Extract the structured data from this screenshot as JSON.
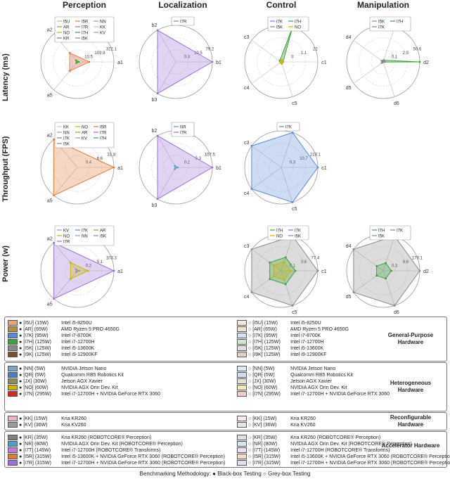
{
  "columns": [
    "Perception",
    "Localization",
    "Control",
    "Manipulation"
  ],
  "rows": [
    "Latency (ms)",
    "Throughput (FPS)",
    "Power (w)"
  ],
  "chart_data": [
    {
      "type": "radar",
      "row": "Latency (ms)",
      "column": "Perception",
      "axes": [
        "a1",
        "a2",
        "a5"
      ],
      "rings": [
        10.5,
        103.9,
        322.1
      ],
      "legend": [
        "I5U",
        "I5R",
        "NN",
        "AR",
        "I7R",
        "KK",
        "NO",
        "I7H",
        "KV",
        "KR",
        "I5K"
      ],
      "series": [
        {
          "name": "I5R",
          "values": [
            103.9,
            103.9,
            103.9
          ]
        },
        {
          "name": "KK",
          "values": [
            60,
            80,
            70
          ]
        },
        {
          "name": "I7H",
          "values": [
            10.5,
            15,
            12
          ]
        },
        {
          "name": "NO",
          "values": [
            12,
            20,
            10
          ]
        }
      ]
    },
    {
      "type": "radar",
      "row": "Latency (ms)",
      "column": "Localization",
      "axes": [
        "b1",
        "b2",
        "b3"
      ],
      "rings": [
        0.3,
        10.5,
        79.2
      ],
      "legend": [
        "I7R"
      ],
      "series": [
        {
          "name": "I7R",
          "values": [
            79.2,
            79.2,
            79.2
          ]
        }
      ]
    },
    {
      "type": "radar",
      "row": "Latency (ms)",
      "column": "Control",
      "axes": [
        "c1",
        "c2",
        "c3",
        "c4",
        "c5"
      ],
      "rings": [
        0.0,
        1.1,
        22.0
      ],
      "legend": [
        "I7K",
        "I7H",
        "I5K",
        "NO"
      ],
      "series": [
        {
          "name": "I7H",
          "values": [
            1.1,
            22.0,
            1.1,
            0.5,
            1.1
          ]
        },
        {
          "name": "NO",
          "values": [
            1.1,
            1.1,
            0.5,
            0.5,
            1.1
          ]
        }
      ]
    },
    {
      "type": "radar",
      "row": "Latency (ms)",
      "column": "Manipulation",
      "axes": [
        "d2",
        "d3",
        "d4",
        "d5",
        "d6"
      ],
      "rings": [
        0.1,
        2.5,
        50.6
      ],
      "legend": [
        "I5K",
        "I7H",
        "I7K"
      ],
      "series": [
        {
          "name": "I7H",
          "values": [
            50.6,
            2.5,
            2.5,
            0.1,
            0.1
          ]
        },
        {
          "name": "I5K",
          "values": [
            2.5,
            2.5,
            2.5,
            2.5,
            0.1
          ]
        }
      ]
    },
    {
      "type": "radar",
      "row": "Throughput (FPS)",
      "column": "Perception",
      "axes": [
        "a1",
        "a2",
        "a5"
      ],
      "rings": [
        0.4,
        6.6,
        31.8
      ],
      "legend": [
        "KK",
        "NO",
        "I5R",
        "NN",
        "AR",
        "I7R",
        "I7K",
        "KV",
        "I7H",
        "I5K"
      ],
      "series": [
        {
          "name": "I5R",
          "values": [
            31.8,
            31.8,
            31.8
          ]
        }
      ]
    },
    {
      "type": "radar",
      "row": "Throughput (FPS)",
      "column": "Localization",
      "axes": [
        "b1",
        "b2",
        "b3"
      ],
      "rings": [
        0.2,
        5.3,
        107.5
      ],
      "legend": [
        "NR",
        "I7R"
      ],
      "series": [
        {
          "name": "I7R",
          "values": [
            107.5,
            107.5,
            107.5
          ]
        },
        {
          "name": "NR",
          "values": [
            5.3,
            5.3,
            5.3
          ]
        }
      ]
    },
    {
      "type": "radar",
      "row": "Throughput (FPS)",
      "column": "Control",
      "axes": [
        "c1",
        "c2",
        "c3",
        "c4",
        "c5"
      ],
      "rings": [
        0.3,
        10.7,
        219.1
      ],
      "legend": [
        "I7K"
      ],
      "series": [
        {
          "name": "I7K",
          "values": [
            219.1,
            219.1,
            219.1,
            219.1,
            219.1
          ]
        }
      ]
    },
    {
      "type": "radar",
      "row": "Power (w)",
      "column": "Perception",
      "axes": [
        "a1",
        "a2",
        "a5"
      ],
      "rings": [
        0.2,
        5.1,
        103.3
      ],
      "legend": [
        "KV",
        "I7K",
        "AR",
        "NO",
        "NN",
        "I5K",
        "I7R"
      ],
      "series": [
        {
          "name": "I7R",
          "values": [
            103.3,
            103.3,
            103.3
          ]
        },
        {
          "name": "KV",
          "values": [
            5.1,
            5.1,
            5.1
          ]
        },
        {
          "name": "NO",
          "values": [
            30,
            30,
            30
          ]
        }
      ]
    },
    {
      "type": "radar",
      "row": "Power (w)",
      "column": "Control",
      "axes": [
        "c1",
        "c2",
        "c3",
        "c4",
        "c5"
      ],
      "rings": [
        0.1,
        3.6,
        77.4
      ],
      "legend": [
        "I7H",
        "I7K",
        "NO",
        "I5K"
      ],
      "series": [
        {
          "name": "I5K",
          "values": [
            77.4,
            77.4,
            77.4,
            77.4,
            77.4
          ]
        },
        {
          "name": "I7H",
          "values": [
            30,
            30,
            30,
            30,
            30
          ]
        },
        {
          "name": "NO",
          "values": [
            20,
            20,
            20,
            20,
            20
          ]
        }
      ]
    },
    {
      "type": "radar",
      "row": "Power (w)",
      "column": "Manipulation",
      "axes": [
        "d2",
        "d3",
        "d4",
        "d5",
        "d6"
      ],
      "rings": [
        0.3,
        8.6,
        179.1
      ],
      "legend": [
        "I7H",
        "I7K",
        "I5K"
      ],
      "series": [
        {
          "name": "I5K",
          "values": [
            179.1,
            179.1,
            179.1,
            179.1,
            179.1
          ]
        },
        {
          "name": "I7H",
          "values": [
            40,
            40,
            40,
            40,
            40
          ]
        }
      ]
    }
  ],
  "series_colors": {
    "I5U": "#e8a27c",
    "AR": "#b48f3f",
    "I7K": "#5b8ad6",
    "I7H": "#3aa33a",
    "I5K": "#8a8a8a",
    "I9K": "#7a5230",
    "NN": "#7aa7c7",
    "QR": "#4a7fbd",
    "JX": "#8d8d5e",
    "NO": "#c9b400",
    "I7N": "#d62728",
    "KK": "#e6b8c8",
    "KV": "#9a9a9a",
    "KR": "#7f7f7f",
    "NR": "#4aa0c8",
    "I7T": "#c27ad6",
    "I5R": "#e07b39",
    "I7R": "#9a70d6"
  },
  "legend_groups": [
    {
      "title": "General-Purpose Hardware",
      "entries": [
        {
          "code": "[I5U]",
          "power": "(15W)",
          "name": "Intel i5-8250U",
          "color": "#e8a27c"
        },
        {
          "code": "[AR]",
          "power": "(65W)",
          "name": "AMD Ryzen 5 PRO 4650G",
          "color": "#b48f3f"
        },
        {
          "code": "[I7K]",
          "power": "(95W)",
          "name": "Intel i7-8700K",
          "color": "#5b8ad6"
        },
        {
          "code": "[I7H]",
          "power": "(125W)",
          "name": "Intel i7-12700H",
          "color": "#3aa33a"
        },
        {
          "code": "[I5K]",
          "power": "(125W)",
          "name": "Intel i5-13600K",
          "color": "#8a8a8a"
        },
        {
          "code": "[I9K]",
          "power": "(125W)",
          "name": "Intel i9-12900KF",
          "color": "#7a5230"
        }
      ]
    },
    {
      "title": "Heterogeneous Hardware",
      "entries": [
        {
          "code": "[NN]",
          "power": "(5W)",
          "name": "NVIDIA Jetson Nano",
          "color": "#7aa7c7"
        },
        {
          "code": "[QR]",
          "power": "(5W)",
          "name": "Qualcomm RB5 Robotics Kit",
          "color": "#4a7fbd"
        },
        {
          "code": "[JX]",
          "power": "(30W)",
          "name": "Jetson AGX Xavier",
          "color": "#8d8d5e"
        },
        {
          "code": "[NO]",
          "power": "(60W)",
          "name": "NVIDIA AGX Orin Dev. Kit",
          "color": "#c9b400"
        },
        {
          "code": "[I7N]",
          "power": "(295W)",
          "name": "Intel i7-12700H + NVIDIA GeForce RTX 3060",
          "color": "#d62728"
        }
      ]
    },
    {
      "title": "Reconfigurable Hardware",
      "entries": [
        {
          "code": "[KK]",
          "power": "(15W)",
          "name": "Kria KR260",
          "color": "#e6b8c8"
        },
        {
          "code": "[KV]",
          "power": "(36W)",
          "name": "Kria KV260",
          "color": "#9a9a9a"
        }
      ]
    },
    {
      "title": "Accelerator Hardware",
      "entries": [
        {
          "code": "[KR]",
          "power": "(35W)",
          "name": "Kria KR260 (ROBOTCORE® Perception)",
          "color": "#7f7f7f"
        },
        {
          "code": "[NR]",
          "power": "(80W)",
          "name": "NVIDIA AGX Orin Dev. Kit (ROBOTCORE® Perception)",
          "color": "#4aa0c8"
        },
        {
          "code": "[I7T]",
          "power": "(145W)",
          "name": "Intel i7-12700H (ROBOTCORE® Transforms)",
          "color": "#c27ad6"
        },
        {
          "code": "[I5R]",
          "power": "(315W)",
          "name": "Intel i5-13600K + NVIDIA GeForce RTX 3060 (ROBOTCORE® Perception)",
          "color": "#e07b39"
        },
        {
          "code": "[I7R]",
          "power": "(315W)",
          "name": "Intel i7-12700H + NVIDIA GeForce RTX 3060 (ROBOTCORE® Perception)",
          "color": "#9a70d6"
        }
      ]
    }
  ],
  "footer": {
    "label": "Benchmarking Methodology:",
    "black": "Black-box Testing",
    "grey": "Grey-box Testing"
  }
}
